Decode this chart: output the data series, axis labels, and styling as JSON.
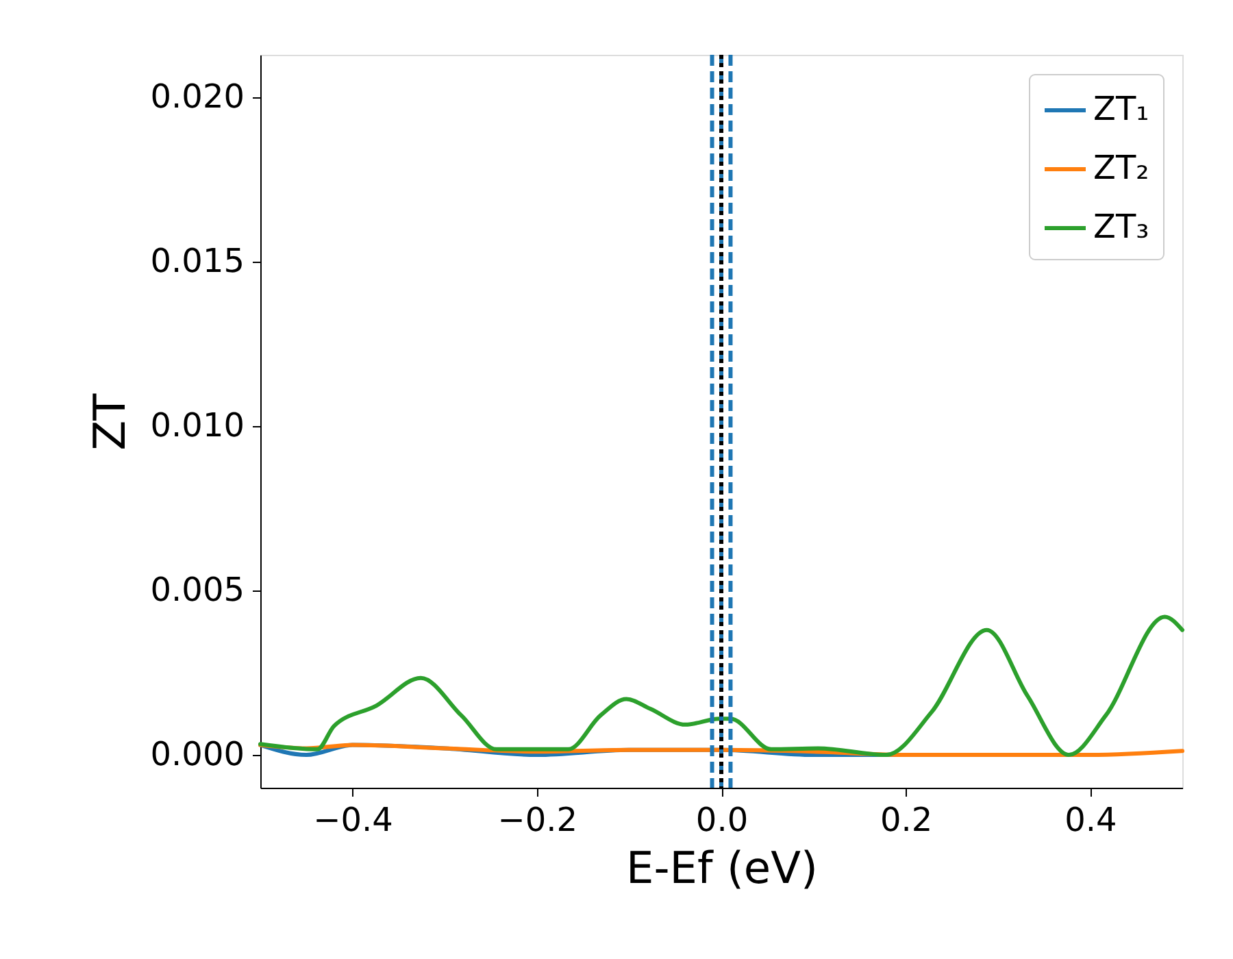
{
  "chart_data": {
    "type": "line",
    "xlabel": "E-Ef (eV)",
    "ylabel": "ZT",
    "xlim": [
      -0.5,
      0.5
    ],
    "ylim": [
      -0.001,
      0.0213
    ],
    "xticks": [
      {
        "value": -0.4,
        "label": "−0.4"
      },
      {
        "value": -0.2,
        "label": "−0.2"
      },
      {
        "value": 0,
        "label": "0.0"
      },
      {
        "value": 0.2,
        "label": "0.2"
      },
      {
        "value": 0.4,
        "label": "0.4"
      }
    ],
    "yticks": [
      {
        "value": 0,
        "label": "0.000"
      },
      {
        "value": 0.005,
        "label": "0.005"
      },
      {
        "value": 0.01,
        "label": "0.010"
      },
      {
        "value": 0.015,
        "label": "0.015"
      },
      {
        "value": 0.02,
        "label": "0.020"
      }
    ],
    "legend": "top right",
    "grid": false,
    "line_style": "solid",
    "marker": "none",
    "series": [
      {
        "name": "ZT₁",
        "color": "#1f77b4",
        "x": [
          -0.5,
          -0.45,
          -0.4,
          -0.3,
          -0.2,
          -0.1,
          0,
          0.1,
          0.2,
          0.3
        ],
        "values": [
          0.0003,
          0.0,
          0.0003,
          0.0002,
          0.0,
          0.00015,
          0.00015,
          0.0,
          0.0,
          0.0
        ]
      },
      {
        "name": "ZT₂",
        "color": "#ff7f0e",
        "x": [
          -0.5,
          -0.45,
          -0.4,
          -0.3,
          -0.2,
          -0.1,
          0,
          0.1,
          0.2,
          0.3,
          0.4,
          0.5
        ],
        "values": [
          0.0003,
          0.0002,
          0.0003,
          0.0002,
          0.0001,
          0.00015,
          0.00015,
          0.0001,
          0.0,
          0.0,
          0.0,
          0.00012
        ]
      },
      {
        "name": "ZT₃",
        "color": "#2ca02c",
        "x": [
          -0.5,
          -0.438,
          -0.42,
          -0.374,
          -0.326,
          -0.282,
          -0.244,
          -0.21,
          -0.166,
          -0.131,
          -0.103,
          -0.077,
          -0.039,
          -0.002,
          0.01,
          0.054,
          0.105,
          0.179,
          0.228,
          0.288,
          0.332,
          0.377,
          0.417,
          0.481,
          0.5
        ],
        "values": [
          0.00033,
          0.00017,
          0.00088,
          0.0015,
          0.00234,
          0.0012,
          0.00017,
          0.00017,
          0.00017,
          0.0012,
          0.0017,
          0.0014,
          0.00092,
          0.0011,
          0.0011,
          0.00017,
          0.0002,
          0.0,
          0.0013,
          0.0038,
          0.0018,
          0.0,
          0.0012,
          0.0042,
          0.0038
        ]
      }
    ],
    "ref_lines": [
      {
        "axis": "x",
        "value": -0.01,
        "color": "#1f77b4",
        "line_style": "dashed"
      },
      {
        "axis": "x",
        "value": 0.01,
        "color": "#1f77b4",
        "line_style": "dashed"
      },
      {
        "axis": "x",
        "value": 0,
        "color": "#1f77b4",
        "line_style": "dashed"
      },
      {
        "axis": "x",
        "value": 0,
        "color": "#000000",
        "line_style": "dotted"
      }
    ]
  }
}
